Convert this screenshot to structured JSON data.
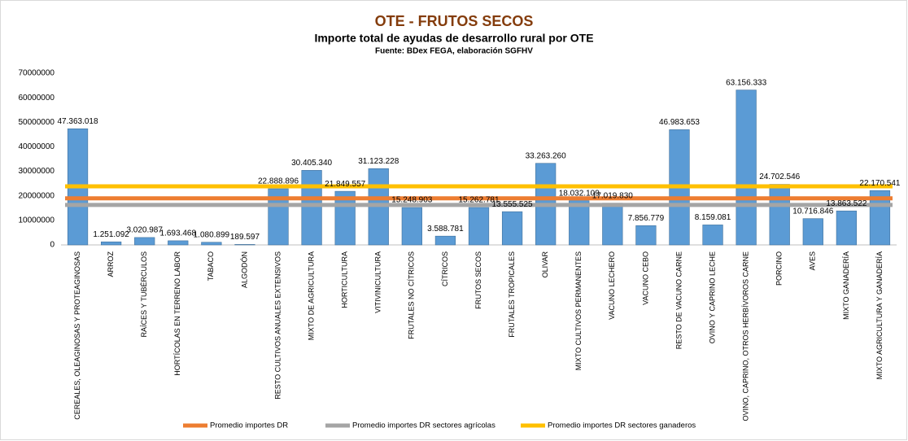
{
  "chart_data": {
    "type": "bar",
    "title": "OTE - FRUTOS SECOS",
    "subtitle": "Importe total de ayudas de desarrollo rural por OTE",
    "source": "Fuente: BDex FEGA, elaboración SGFHV",
    "categories": [
      "CEREALES, OLEAGINOSAS Y PROTEAGINOSAS",
      "ARROZ",
      "RAÍCES Y TUBÉRCULOS",
      "HORTÍCOLAS EN TERRENO LABOR",
      "TABACO",
      "ALGODÓN",
      "RESTO CULTIVOS ANUALES EXTENSIVOS",
      "MIXTO DE AGRICULTURA",
      "HORTICULTURA",
      "VITIVINICULTURA",
      "FRUTALES NO CÍTRICOS",
      "CÍTRICOS",
      "FRUTOS SECOS",
      "FRUTALES TROPICALES",
      "OLIVAR",
      "MIXTO CULTIVOS PERMANENTES",
      "VACUNO LECHERO",
      "VACUNO CEBO",
      "RESTO DE VACUNO CARNE",
      "OVINO Y CAPRINO LECHE",
      "OVINO, CAPRINO, OTROS HERBÍVOROS CARNE",
      "PORCINO",
      "AVES",
      "MIXTO GANADERÍA",
      "MIXTO AGRICULTURA Y GANADERÍA"
    ],
    "values": [
      47363018,
      1251092,
      3020987,
      1693468,
      1080899,
      189597,
      22888896,
      30405340,
      21849557,
      31123228,
      15248903,
      3588781,
      15262781,
      13555525,
      33263260,
      18032109,
      17019830,
      7856779,
      46983653,
      8159081,
      63156333,
      24702546,
      10716846,
      13863522,
      22170541
    ],
    "value_labels": [
      "47.363.018",
      "1.251.092",
      "3.020.987",
      "1.693.468",
      "1.080.899",
      "189.597",
      "22.888.896",
      "30.405.340",
      "21.849.557",
      "31.123.228",
      "15.248.903",
      "3.588.781",
      "15.262.781",
      "13.555.525",
      "33.263.260",
      "18.032.109",
      "17.019.830",
      "7.856.779",
      "46.983.653",
      "8.159.081",
      "63.156.333",
      "24.702.546",
      "10.716.846",
      "13.863.522",
      "22.170.541"
    ],
    "color": "#5b9bd5",
    "reference_lines": [
      {
        "name": "Promedio importes DR",
        "color": "#ed7d31",
        "value": 19000000
      },
      {
        "name": "Promedio importes DR sectores agrícolas",
        "color": "#a5a5a5",
        "value": 16300000
      },
      {
        "name": "Promedio importes DR sectores ganaderos",
        "color": "#ffc000",
        "value": 23900000
      }
    ],
    "ylim": [
      0,
      70000000
    ],
    "yticks": [
      0,
      10000000,
      20000000,
      30000000,
      40000000,
      50000000,
      60000000,
      70000000
    ],
    "grid": false
  }
}
